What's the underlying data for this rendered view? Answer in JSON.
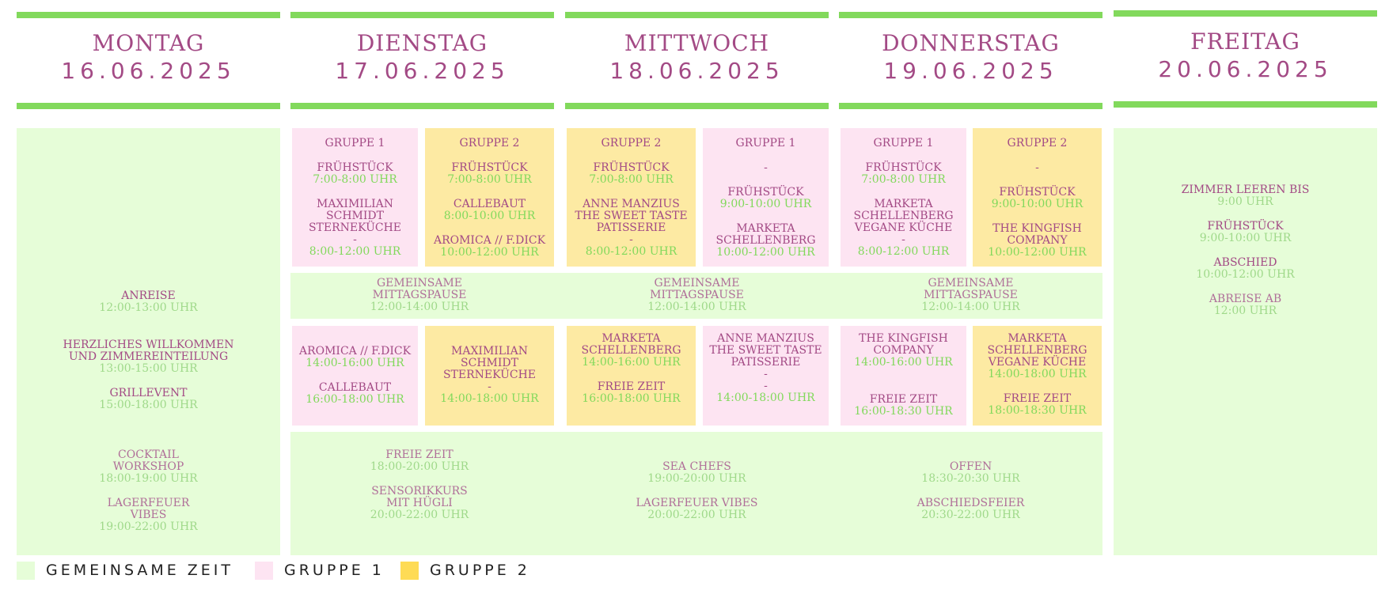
{
  "days": [
    {
      "name": "MONTAG",
      "date": "16.06.2025"
    },
    {
      "name": "DIENSTAG",
      "date": "17.06.2025"
    },
    {
      "name": "MITTWOCH",
      "date": "18.06.2025"
    },
    {
      "name": "DONNERSTAG",
      "date": "19.06.2025"
    },
    {
      "name": "FREITAG",
      "date": "20.06.2025"
    }
  ],
  "colors": {
    "bar": "#82d95c",
    "common": "#e6fdd8",
    "group1": "#fde4f2",
    "group2": "#fdeaa3",
    "legend_group2": "#fedb55",
    "title": "#a34a85",
    "time": "#82d95c"
  },
  "monday": {
    "anreise": "ANREISE",
    "anreise_time": "12:00-13:00 UHR",
    "willkommen": "HERZLICHES WILLKOMMEN\nUND ZIMMEREINTEILUNG",
    "willkommen_time": "13:00-15:00 UHR",
    "grill": "GRILLEVENT",
    "grill_time": "15:00-18:00 UHR",
    "cocktail": "COCKTAIL\nWORKSHOP",
    "cocktail_time": "18:00-19:00 UHR",
    "lagerfeuer": "LAGERFEUER\nVIBES",
    "lagerfeuer_time": "19:00-22:00 UHR"
  },
  "tue_am_g1": {
    "group": "GRUPPE 1",
    "breakfast": "FRÜHSTÜCK",
    "breakfast_time": "7:00-8:00 UHR",
    "session": "MAXIMILIAN\nSCHMIDT\nSTERNEKÜCHE\n-",
    "session_time": "8:00-12:00 UHR"
  },
  "tue_am_g2": {
    "group": "GRUPPE 2",
    "breakfast": "FRÜHSTÜCK",
    "breakfast_time": "7:00-8:00 UHR",
    "s1": "CALLEBAUT",
    "s1_time": "8:00-10:00 UHR",
    "s2": "AROMICA // F.DICK",
    "s2_time": "10:00-12:00 UHR"
  },
  "wed_am_g2": {
    "group": "GRUPPE 2",
    "breakfast": "FRÜHSTÜCK",
    "breakfast_time": "7:00-8:00 UHR",
    "session": "ANNE MANZIUS\nTHE SWEET TASTE\nPATISSERIE\n-",
    "session_time": "8:00-12:00 UHR"
  },
  "wed_am_g1": {
    "group": "GRUPPE 1",
    "dash": "-",
    "breakfast": "FRÜHSTÜCK",
    "breakfast_time": "9:00-10:00 UHR",
    "session": "MARKETA\nSCHELLENBERG",
    "session_time": "10:00-12:00 UHR"
  },
  "thu_am_g1": {
    "group": "GRUPPE 1",
    "breakfast": "FRÜHSTÜCK",
    "breakfast_time": "7:00-8:00 UHR",
    "session": "MARKETA\nSCHELLENBERG\nVEGANE KÜCHE\n-",
    "session_time": "8:00-12:00 UHR"
  },
  "thu_am_g2": {
    "group": "GRUPPE 2",
    "dash": "-",
    "breakfast": "FRÜHSTÜCK",
    "breakfast_time": "9:00-10:00 UHR",
    "session": "THE KINGFISH\nCOMPANY",
    "session_time": "10:00-12:00 UHR"
  },
  "lunch": {
    "label": "GEMEINSAME\nMITTAGSPAUSE",
    "time": "12:00-14:00 UHR"
  },
  "tue_pm_g1": {
    "s1": "AROMICA // F.DICK",
    "s1_time": "14:00-16:00 UHR",
    "s2": "CALLEBAUT",
    "s2_time": "16:00-18:00 UHR"
  },
  "tue_pm_g2": {
    "session": "MAXIMILIAN\nSCHMIDT\nSTERNEKÜCHE\n-",
    "session_time": "14:00-18:00 UHR"
  },
  "wed_pm_g2": {
    "s1": "MARKETA\nSCHELLENBERG",
    "s1_time": "14:00-16:00 UHR",
    "s2": "FREIE ZEIT",
    "s2_time": "16:00-18:00 UHR"
  },
  "wed_pm_g1": {
    "session": "ANNE MANZIUS\nTHE SWEET TASTE\nPATISSERIE\n-\n-",
    "session_time": "14:00-18:00 UHR"
  },
  "thu_pm_g1": {
    "s1": "THE KINGFISH\nCOMPANY",
    "s1_time": "14:00-16:00 UHR",
    "s2": "FREIE ZEIT",
    "s2_time": "16:00-18:30 UHR"
  },
  "thu_pm_g2": {
    "s1": "MARKETA\nSCHELLENBERG\nVEGANE KÜCHE",
    "s1_time": "14:00-18:00 UHR",
    "s2": "FREIE ZEIT",
    "s2_time": "18:00-18:30 UHR"
  },
  "evening": {
    "tue_a": "FREIE ZEIT",
    "tue_a_time": "18:00-20:00 UHR",
    "tue_b": "SENSORIKKURS\nMIT HÜGLI",
    "tue_b_time": "20:00-22:00 UHR",
    "wed_a": "SEA CHEFS",
    "wed_a_time": "19:00-20:00 UHR",
    "wed_b": "LAGERFEUER VIBES",
    "wed_b_time": "20:00-22:00 UHR",
    "thu_a": "OFFEN",
    "thu_a_time": "18:30-20:30 UHR",
    "thu_b": "ABSCHIEDSFEIER",
    "thu_b_time": "20:30-22:00 UHR"
  },
  "friday": {
    "a": "ZIMMER LEEREN BIS",
    "a_time": "9:00 UHR",
    "b": "FRÜHSTÜCK",
    "b_time": "9:00-10:00 UHR",
    "c": "ABSCHIED",
    "c_time": "10:00-12:00 UHR",
    "d": "ABREISE AB",
    "d_time": "12:00 UHR"
  },
  "legend": {
    "common": "GEMEINSAME ZEIT",
    "group1": "GRUPPE 1",
    "group2": "GRUPPE 2"
  }
}
